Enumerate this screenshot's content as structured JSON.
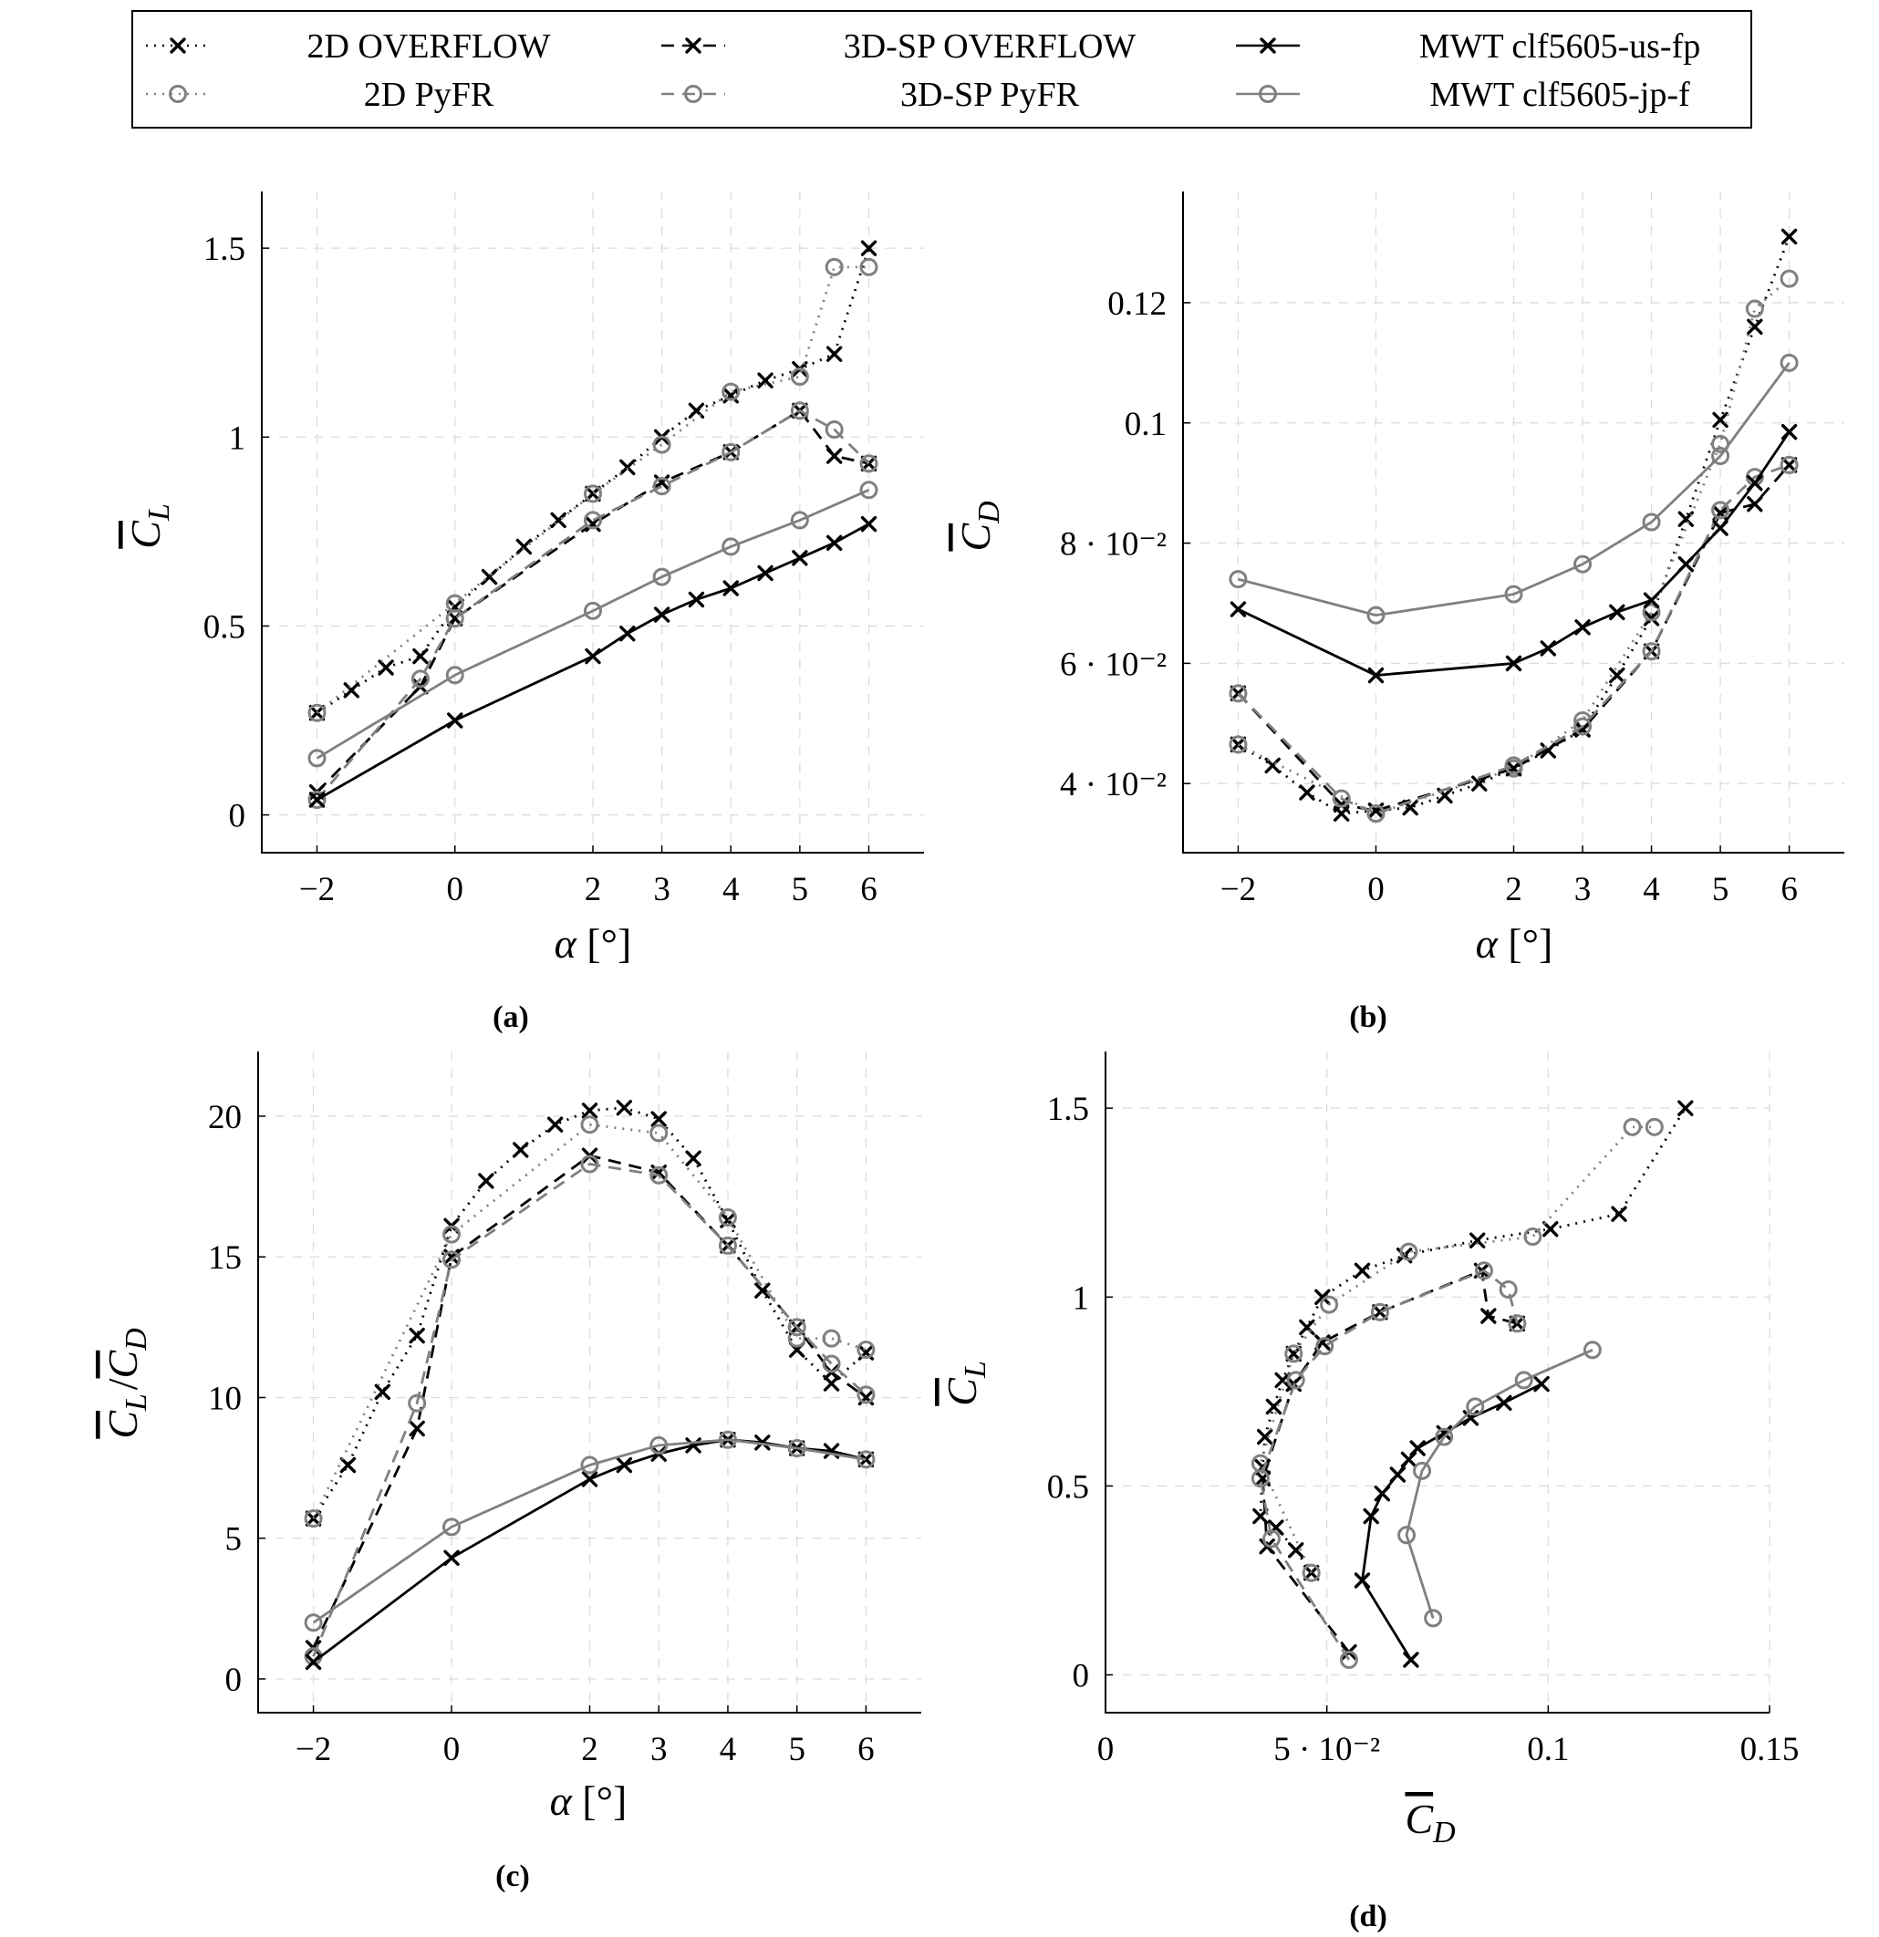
{
  "legend": {
    "entries": [
      {
        "label": "2D OVERFLOW",
        "series": "2d_overflow"
      },
      {
        "label": "3D-SP OVERFLOW",
        "series": "3dsp_overflow"
      },
      {
        "label": "MWT clf5605-us-fp",
        "series": "mwt_us"
      },
      {
        "label": "2D PyFR",
        "series": "2d_pyfr"
      },
      {
        "label": "3D-SP PyFR",
        "series": "3dsp_pyfr"
      },
      {
        "label": "MWT clf5605-jp-f",
        "series": "mwt_jp"
      }
    ]
  },
  "styles": {
    "2d_overflow": {
      "color": "#000000",
      "dash": "dotted",
      "marker": "x"
    },
    "2d_pyfr": {
      "color": "#808080",
      "dash": "dotted",
      "marker": "o"
    },
    "3dsp_overflow": {
      "color": "#000000",
      "dash": "dashed",
      "marker": "x"
    },
    "3dsp_pyfr": {
      "color": "#808080",
      "dash": "dashed",
      "marker": "o"
    },
    "mwt_us": {
      "color": "#000000",
      "dash": "solid",
      "marker": "x"
    },
    "mwt_jp": {
      "color": "#808080",
      "dash": "solid",
      "marker": "o"
    }
  },
  "chart_data": [
    {
      "id": "a",
      "caption": "(a)",
      "type": "line",
      "xlabel": "α [°]",
      "ylabel": "C_L",
      "xlim": [
        -2.8,
        6.8
      ],
      "ylim": [
        -0.1,
        1.65
      ],
      "xticks": [
        {
          "v": -2,
          "t": "−2"
        },
        {
          "v": 0,
          "t": "0"
        },
        {
          "v": 2,
          "t": "2"
        },
        {
          "v": 3,
          "t": "3"
        },
        {
          "v": 4,
          "t": "4"
        },
        {
          "v": 5,
          "t": "5"
        },
        {
          "v": 6,
          "t": "6"
        }
      ],
      "yticks": [
        {
          "v": 0,
          "t": "0"
        },
        {
          "v": 0.5,
          "t": "0.5"
        },
        {
          "v": 1,
          "t": "1"
        },
        {
          "v": 1.5,
          "t": "1.5"
        }
      ],
      "series": [
        {
          "key": "2d_overflow",
          "x": [
            -2,
            -1.5,
            -1,
            -0.5,
            0,
            0.5,
            1,
            1.5,
            2,
            2.5,
            3,
            3.5,
            4,
            4.5,
            5,
            5.5,
            6
          ],
          "y": [
            0.27,
            0.33,
            0.39,
            0.42,
            0.55,
            0.63,
            0.71,
            0.78,
            0.85,
            0.92,
            1.0,
            1.07,
            1.11,
            1.15,
            1.18,
            1.22,
            1.5
          ]
        },
        {
          "key": "2d_pyfr",
          "x": [
            -2,
            0,
            2,
            3,
            4,
            5,
            5.5,
            6
          ],
          "y": [
            0.27,
            0.56,
            0.85,
            0.98,
            1.12,
            1.16,
            1.45,
            1.45
          ]
        },
        {
          "key": "3dsp_overflow",
          "x": [
            -2,
            -0.5,
            0,
            2,
            3,
            4,
            5,
            5.5,
            6
          ],
          "y": [
            0.06,
            0.34,
            0.52,
            0.77,
            0.88,
            0.96,
            1.07,
            0.95,
            0.93
          ]
        },
        {
          "key": "3dsp_pyfr",
          "x": [
            -2,
            -0.5,
            0,
            2,
            3,
            4,
            5,
            5.5,
            6
          ],
          "y": [
            0.04,
            0.36,
            0.52,
            0.78,
            0.87,
            0.96,
            1.07,
            1.02,
            0.93
          ]
        },
        {
          "key": "mwt_us",
          "x": [
            -2,
            0,
            2,
            2.5,
            3,
            3.5,
            4,
            4.5,
            5,
            5.5,
            6
          ],
          "y": [
            0.04,
            0.25,
            0.42,
            0.48,
            0.53,
            0.57,
            0.6,
            0.64,
            0.68,
            0.72,
            0.77
          ]
        },
        {
          "key": "mwt_jp",
          "x": [
            -2,
            0,
            2,
            3,
            4,
            5,
            6
          ],
          "y": [
            0.15,
            0.37,
            0.54,
            0.63,
            0.71,
            0.78,
            0.86
          ]
        }
      ]
    },
    {
      "id": "b",
      "caption": "(b)",
      "type": "line",
      "xlabel": "α [°]",
      "ylabel": "C_D",
      "xlim": [
        -2.8,
        6.8
      ],
      "ylim": [
        0.0285,
        0.1385
      ],
      "xticks": [
        {
          "v": -2,
          "t": "−2"
        },
        {
          "v": 0,
          "t": "0"
        },
        {
          "v": 2,
          "t": "2"
        },
        {
          "v": 3,
          "t": "3"
        },
        {
          "v": 4,
          "t": "4"
        },
        {
          "v": 5,
          "t": "5"
        },
        {
          "v": 6,
          "t": "6"
        }
      ],
      "yticks": [
        {
          "v": 0.04,
          "t": "4 · 10⁻²"
        },
        {
          "v": 0.06,
          "t": "6 · 10⁻²"
        },
        {
          "v": 0.08,
          "t": "8 · 10⁻²"
        },
        {
          "v": 0.1,
          "t": "0.1"
        },
        {
          "v": 0.12,
          "t": "0.12"
        }
      ],
      "series": [
        {
          "key": "2d_overflow",
          "x": [
            -2,
            -1.5,
            -1,
            -0.5,
            0,
            0.5,
            1,
            1.5,
            2,
            2.5,
            3,
            3.5,
            4,
            4.5,
            5,
            5.5,
            6
          ],
          "y": [
            0.0465,
            0.043,
            0.0385,
            0.035,
            0.0355,
            0.036,
            0.038,
            0.04,
            0.0425,
            0.0455,
            0.049,
            0.058,
            0.0675,
            0.084,
            0.1005,
            0.116,
            0.131
          ]
        },
        {
          "key": "2d_pyfr",
          "x": [
            -2,
            0,
            2,
            3,
            4,
            5,
            5.5,
            6
          ],
          "y": [
            0.0465,
            0.035,
            0.0425,
            0.0505,
            0.0685,
            0.0965,
            0.119,
            0.124
          ]
        },
        {
          "key": "3dsp_overflow",
          "x": [
            -2,
            -0.5,
            0,
            2,
            3,
            4,
            5,
            5.5,
            6
          ],
          "y": [
            0.055,
            0.0365,
            0.0355,
            0.0425,
            0.049,
            0.062,
            0.085,
            0.0865,
            0.093
          ]
        },
        {
          "key": "3dsp_pyfr",
          "x": [
            -2,
            -0.5,
            0,
            2,
            3,
            4,
            5,
            5.5,
            6
          ],
          "y": [
            0.055,
            0.0375,
            0.035,
            0.043,
            0.0495,
            0.062,
            0.0855,
            0.091,
            0.093
          ]
        },
        {
          "key": "mwt_us",
          "x": [
            -2,
            0,
            2,
            2.5,
            3,
            3.5,
            4,
            4.5,
            5,
            5.5,
            6
          ],
          "y": [
            0.069,
            0.058,
            0.06,
            0.0625,
            0.066,
            0.0685,
            0.0705,
            0.0765,
            0.0825,
            0.09,
            0.0985
          ]
        },
        {
          "key": "mwt_jp",
          "x": [
            -2,
            0,
            2,
            3,
            4,
            5,
            6
          ],
          "y": [
            0.074,
            0.068,
            0.0715,
            0.0765,
            0.0835,
            0.0945,
            0.11
          ]
        }
      ]
    },
    {
      "id": "c",
      "caption": "(c)",
      "type": "line",
      "xlabel": "α [°]",
      "ylabel": "C_L/C_D",
      "xlim": [
        -2.8,
        6.8
      ],
      "ylim": [
        -1.2,
        22.3
      ],
      "xticks": [
        {
          "v": -2,
          "t": "−2"
        },
        {
          "v": 0,
          "t": "0"
        },
        {
          "v": 2,
          "t": "2"
        },
        {
          "v": 3,
          "t": "3"
        },
        {
          "v": 4,
          "t": "4"
        },
        {
          "v": 5,
          "t": "5"
        },
        {
          "v": 6,
          "t": "6"
        }
      ],
      "yticks": [
        {
          "v": 0,
          "t": "0"
        },
        {
          "v": 5,
          "t": "5"
        },
        {
          "v": 10,
          "t": "10"
        },
        {
          "v": 15,
          "t": "15"
        },
        {
          "v": 20,
          "t": "20"
        }
      ],
      "series": [
        {
          "key": "2d_overflow",
          "x": [
            -2,
            -1.5,
            -1,
            -0.5,
            0,
            0.5,
            1,
            1.5,
            2,
            2.5,
            3,
            3.5,
            4,
            4.5,
            5,
            5.5,
            6
          ],
          "y": [
            5.7,
            7.6,
            10.2,
            12.2,
            16.1,
            17.7,
            18.8,
            19.7,
            20.2,
            20.3,
            19.9,
            18.5,
            16.3,
            13.8,
            11.7,
            10.5,
            11.6
          ]
        },
        {
          "key": "2d_pyfr",
          "x": [
            -2,
            0,
            2,
            3,
            4,
            5,
            5.5,
            6
          ],
          "y": [
            5.7,
            15.8,
            19.7,
            19.4,
            16.4,
            12.1,
            12.1,
            11.7
          ]
        },
        {
          "key": "3dsp_overflow",
          "x": [
            -2,
            -0.5,
            0,
            2,
            3,
            4,
            5,
            5.5,
            6
          ],
          "y": [
            1.1,
            8.9,
            15.0,
            18.6,
            18.0,
            15.4,
            12.5,
            10.9,
            10.0
          ]
        },
        {
          "key": "3dsp_pyfr",
          "x": [
            -2,
            -0.5,
            0,
            2,
            3,
            4,
            5,
            5.5,
            6
          ],
          "y": [
            0.8,
            9.8,
            14.9,
            18.3,
            17.9,
            15.4,
            12.5,
            11.2,
            10.1
          ]
        },
        {
          "key": "mwt_us",
          "x": [
            -2,
            0,
            2,
            2.5,
            3,
            3.5,
            4,
            4.5,
            5,
            5.5,
            6
          ],
          "y": [
            0.6,
            4.3,
            7.1,
            7.6,
            8.0,
            8.3,
            8.5,
            8.4,
            8.2,
            8.1,
            7.8
          ]
        },
        {
          "key": "mwt_jp",
          "x": [
            -2,
            0,
            2,
            3,
            4,
            5,
            6
          ],
          "y": [
            2.0,
            5.4,
            7.6,
            8.3,
            8.5,
            8.2,
            7.8
          ]
        }
      ]
    },
    {
      "id": "d",
      "caption": "(d)",
      "type": "line",
      "xlabel": "C_D",
      "ylabel": "C_L",
      "xlim": [
        0,
        0.15
      ],
      "ylim": [
        -0.1,
        1.65
      ],
      "xticks": [
        {
          "v": 0,
          "t": "0"
        },
        {
          "v": 0.05,
          "t": "5 · 10⁻²"
        },
        {
          "v": 0.1,
          "t": "0.1"
        },
        {
          "v": 0.15,
          "t": "0.15"
        }
      ],
      "yticks": [
        {
          "v": 0,
          "t": "0"
        },
        {
          "v": 0.5,
          "t": "0.5"
        },
        {
          "v": 1,
          "t": "1"
        },
        {
          "v": 1.5,
          "t": "1.5"
        }
      ],
      "series": [
        {
          "key": "2d_overflow",
          "x": [
            0.0465,
            0.043,
            0.0385,
            0.035,
            0.0355,
            0.036,
            0.038,
            0.04,
            0.0425,
            0.0455,
            0.049,
            0.058,
            0.0675,
            0.084,
            0.1005,
            0.116,
            0.131
          ],
          "y": [
            0.27,
            0.33,
            0.39,
            0.42,
            0.55,
            0.63,
            0.71,
            0.78,
            0.85,
            0.92,
            1.0,
            1.07,
            1.11,
            1.15,
            1.18,
            1.22,
            1.5
          ]
        },
        {
          "key": "2d_pyfr",
          "x": [
            0.0465,
            0.035,
            0.0425,
            0.0505,
            0.0685,
            0.0965,
            0.119,
            0.124
          ],
          "y": [
            0.27,
            0.56,
            0.85,
            0.98,
            1.12,
            1.16,
            1.45,
            1.45
          ]
        },
        {
          "key": "3dsp_overflow",
          "x": [
            0.055,
            0.0365,
            0.0355,
            0.0425,
            0.049,
            0.062,
            0.085,
            0.0865,
            0.093
          ],
          "y": [
            0.06,
            0.34,
            0.52,
            0.77,
            0.88,
            0.96,
            1.07,
            0.95,
            0.93
          ]
        },
        {
          "key": "3dsp_pyfr",
          "x": [
            0.055,
            0.0375,
            0.035,
            0.043,
            0.0495,
            0.062,
            0.0855,
            0.091,
            0.093
          ],
          "y": [
            0.04,
            0.36,
            0.52,
            0.78,
            0.87,
            0.96,
            1.07,
            1.02,
            0.93
          ]
        },
        {
          "key": "mwt_us",
          "x": [
            0.069,
            0.058,
            0.06,
            0.0625,
            0.066,
            0.0685,
            0.0705,
            0.0765,
            0.0825,
            0.09,
            0.0985
          ],
          "y": [
            0.04,
            0.25,
            0.42,
            0.48,
            0.53,
            0.57,
            0.6,
            0.64,
            0.68,
            0.72,
            0.77
          ]
        },
        {
          "key": "mwt_jp",
          "x": [
            0.074,
            0.068,
            0.0715,
            0.0765,
            0.0835,
            0.0945,
            0.11
          ],
          "y": [
            0.15,
            0.37,
            0.54,
            0.63,
            0.71,
            0.78,
            0.86
          ]
        }
      ]
    }
  ]
}
